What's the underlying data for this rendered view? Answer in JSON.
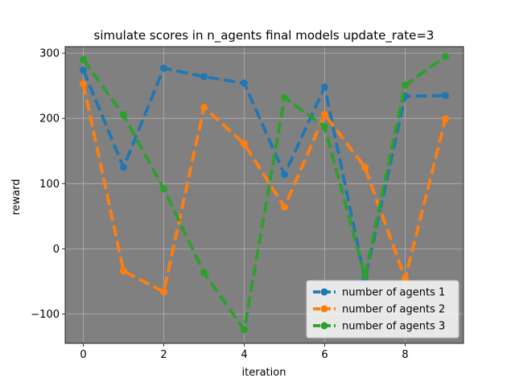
{
  "chart_data": {
    "type": "line",
    "title": "simulate scores in n_agents final models update_rate=3",
    "xlabel": "iteration",
    "ylabel": "reward",
    "x": [
      0,
      1,
      2,
      3,
      4,
      5,
      6,
      7,
      8,
      9
    ],
    "xlim": [
      -0.45,
      9.45
    ],
    "ylim": [
      -145,
      310
    ],
    "xticks": [
      0,
      2,
      4,
      6,
      8
    ],
    "yticks": [
      -100,
      0,
      100,
      200,
      300
    ],
    "ytick_labels": [
      "−100",
      "0",
      "100",
      "200",
      "300"
    ],
    "grid": true,
    "background": "#808080",
    "legend_position": "lower-right",
    "series": [
      {
        "name": "number of agents 1",
        "color": "#1f77b4",
        "values": [
          274,
          125,
          277,
          264,
          254,
          114,
          248,
          -47,
          234,
          235
        ]
      },
      {
        "name": "number of agents 2",
        "color": "#ff7f0e",
        "values": [
          253,
          -34,
          -66,
          217,
          161,
          64,
          206,
          125,
          -46,
          199
        ]
      },
      {
        "name": "number of agents 3",
        "color": "#2ca02c",
        "values": [
          290,
          205,
          92,
          -37,
          -124,
          232,
          187,
          -42,
          251,
          295
        ]
      }
    ]
  }
}
